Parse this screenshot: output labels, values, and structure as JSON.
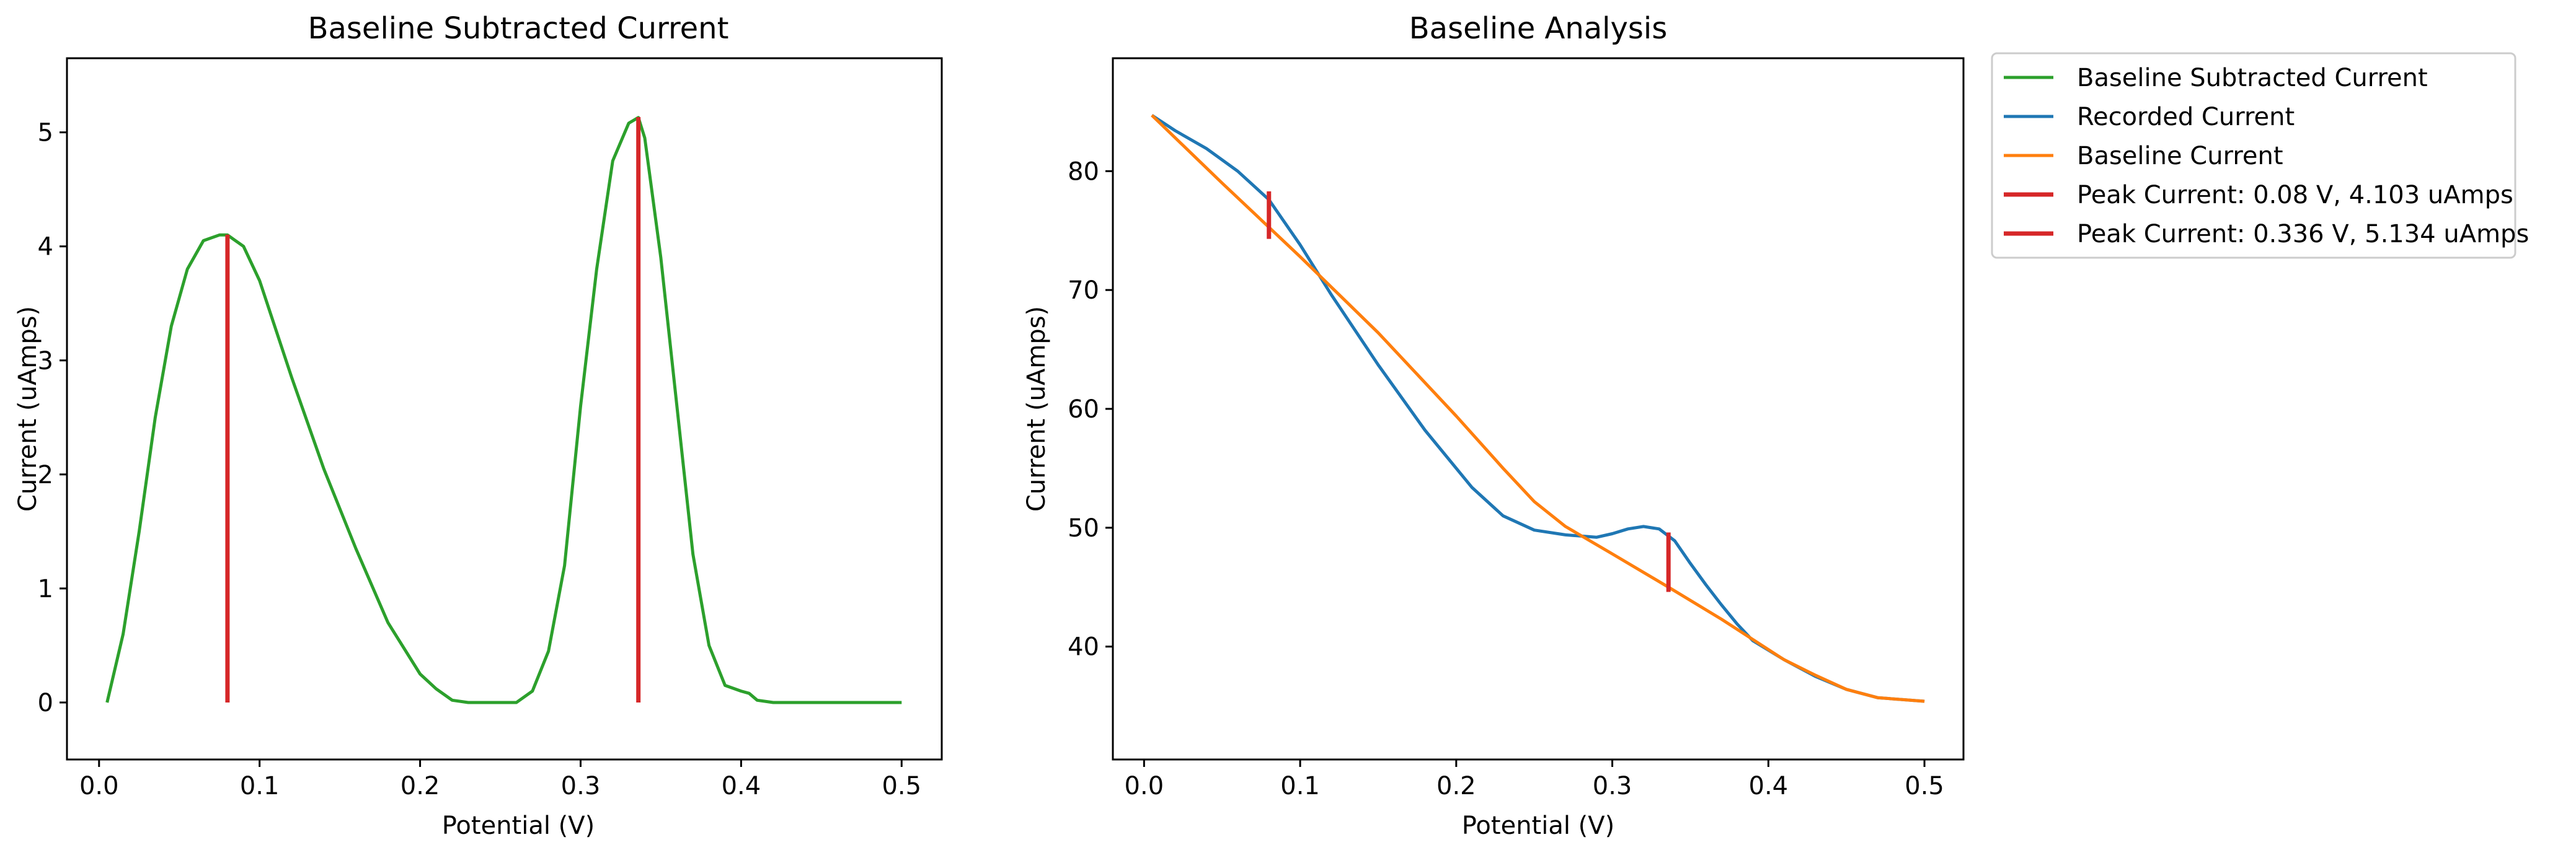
{
  "colors": {
    "subtracted": "#2ca02c",
    "recorded": "#1f77b4",
    "baseline": "#ff7f0e",
    "peak": "#d62728"
  },
  "chart_data": [
    {
      "type": "line",
      "title": "Baseline Subtracted Current",
      "xlabel": "Potential (V)",
      "ylabel": "Current (uAmps)",
      "xlim": [
        -0.02,
        0.525
      ],
      "ylim": [
        -0.5,
        5.65
      ],
      "xticks": [
        "0.0",
        "0.1",
        "0.2",
        "0.3",
        "0.4",
        "0.5"
      ],
      "yticks": [
        "0",
        "1",
        "2",
        "3",
        "4",
        "5"
      ],
      "grid": false,
      "series": [
        {
          "name": "Baseline Subtracted Current",
          "color_key": "subtracted",
          "x": [
            0.005,
            0.015,
            0.025,
            0.035,
            0.045,
            0.055,
            0.065,
            0.075,
            0.08,
            0.09,
            0.1,
            0.12,
            0.14,
            0.16,
            0.18,
            0.2,
            0.21,
            0.22,
            0.23,
            0.24,
            0.25,
            0.26,
            0.27,
            0.28,
            0.29,
            0.3,
            0.31,
            0.32,
            0.33,
            0.336,
            0.34,
            0.35,
            0.36,
            0.37,
            0.38,
            0.39,
            0.4,
            0.405,
            0.41,
            0.42,
            0.45,
            0.5
          ],
          "y": [
            0.0,
            0.6,
            1.5,
            2.5,
            3.3,
            3.8,
            4.05,
            4.1,
            4.1,
            4.0,
            3.7,
            2.85,
            2.05,
            1.35,
            0.7,
            0.25,
            0.12,
            0.02,
            0.0,
            0.0,
            0.0,
            0.0,
            0.1,
            0.45,
            1.2,
            2.6,
            3.8,
            4.75,
            5.08,
            5.13,
            4.95,
            3.9,
            2.6,
            1.3,
            0.5,
            0.15,
            0.1,
            0.08,
            0.02,
            0.0,
            0.0,
            0.0
          ]
        }
      ],
      "peaks": [
        {
          "x": 0.08,
          "y0": 0,
          "y1": 4.103
        },
        {
          "x": 0.336,
          "y0": 0,
          "y1": 5.134
        }
      ]
    },
    {
      "type": "line",
      "title": "Baseline Analysis",
      "xlabel": "Potential (V)",
      "ylabel": "Current (uAmps)",
      "xlim": [
        -0.02,
        0.525
      ],
      "ylim": [
        30.5,
        89.5
      ],
      "xticks": [
        "0.0",
        "0.1",
        "0.2",
        "0.3",
        "0.4",
        "0.5"
      ],
      "yticks": [
        "40",
        "50",
        "60",
        "70",
        "80"
      ],
      "grid": false,
      "legend_position": "outside-right-top",
      "legend": [
        {
          "label": "Baseline Subtracted Current",
          "color_key": "subtracted"
        },
        {
          "label": "Recorded Current",
          "color_key": "recorded"
        },
        {
          "label": "Baseline Current",
          "color_key": "baseline"
        },
        {
          "label": "Peak Current: 0.08 V, 4.103 uAmps",
          "color_key": "peak"
        },
        {
          "label": "Peak Current: 0.336 V, 5.134 uAmps",
          "color_key": "peak"
        }
      ],
      "series": [
        {
          "name": "Recorded Current",
          "color_key": "recorded",
          "x": [
            0.005,
            0.02,
            0.04,
            0.06,
            0.08,
            0.1,
            0.12,
            0.15,
            0.18,
            0.21,
            0.23,
            0.25,
            0.27,
            0.29,
            0.3,
            0.31,
            0.32,
            0.33,
            0.34,
            0.35,
            0.36,
            0.37,
            0.38,
            0.39,
            0.41,
            0.43,
            0.45,
            0.47,
            0.5
          ],
          "y": [
            84.7,
            83.4,
            81.9,
            80.0,
            77.6,
            73.8,
            69.6,
            63.7,
            58.2,
            53.4,
            51.0,
            49.8,
            49.4,
            49.2,
            49.5,
            49.9,
            50.1,
            49.9,
            48.9,
            47.0,
            45.2,
            43.5,
            41.9,
            40.5,
            38.9,
            37.5,
            36.4,
            35.7,
            35.4
          ]
        },
        {
          "name": "Baseline Current",
          "color_key": "baseline",
          "x": [
            0.005,
            0.05,
            0.1,
            0.15,
            0.2,
            0.23,
            0.25,
            0.27,
            0.3,
            0.336,
            0.37,
            0.41,
            0.43,
            0.45,
            0.47,
            0.5
          ],
          "y": [
            84.7,
            79.0,
            72.8,
            66.4,
            59.4,
            55.0,
            52.2,
            50.1,
            47.8,
            45.0,
            42.3,
            38.9,
            37.6,
            36.4,
            35.7,
            35.4
          ]
        }
      ],
      "peaks": [
        {
          "x": 0.08,
          "y0": 74.3,
          "y1": 78.3
        },
        {
          "x": 0.336,
          "y0": 44.6,
          "y1": 49.6
        }
      ]
    }
  ]
}
